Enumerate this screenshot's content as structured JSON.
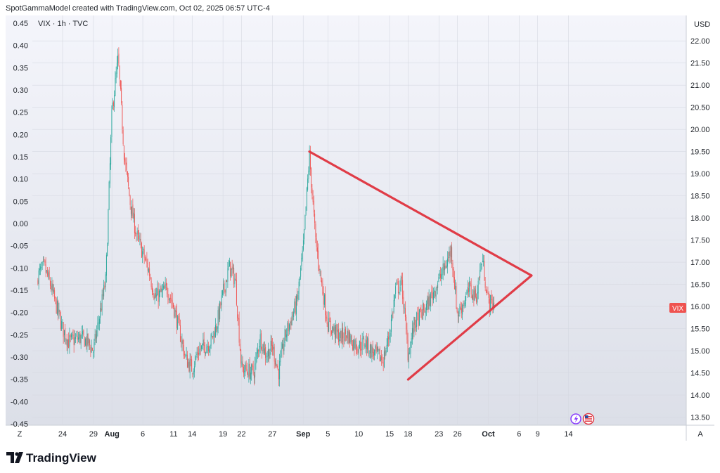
{
  "header": {
    "created_by": "SpotGammaModel created with TradingView.com, Oct 02, 2025 06:57 UTC-4",
    "symbol_line": "VIX · 1h · TVC"
  },
  "footer": {
    "brand": "TradingView"
  },
  "colors": {
    "up": "#26a69a",
    "down": "#ef5350",
    "trendline": "#e03c47",
    "badge": "#ef5350",
    "background_top": "#f4f5fb",
    "background_bottom": "#dcdfe8"
  },
  "icons": [
    "tradingview-logo-icon",
    "lightning-event-icon",
    "us-flag-event-icon"
  ],
  "chart_data": {
    "type": "candlestick",
    "symbol": "VIX",
    "interval": "1h",
    "source": "TVC",
    "currency_label": "USD",
    "last_price_label": "VIX",
    "right_axis": {
      "range": [
        13.35,
        22.4
      ],
      "ticks": [
        "22.00",
        "21.50",
        "21.00",
        "20.50",
        "20.00",
        "19.50",
        "19.00",
        "18.50",
        "18.00",
        "17.50",
        "17.00",
        "16.50",
        "16.00",
        "15.50",
        "15.00",
        "14.50",
        "14.00",
        "13.50"
      ]
    },
    "left_axis": {
      "range": [
        -0.45,
        0.45
      ],
      "ticks": [
        "0.45",
        "0.40",
        "0.35",
        "0.30",
        "0.25",
        "0.20",
        "0.15",
        "0.10",
        "0.05",
        "0.00",
        "-0.05",
        "-0.10",
        "-0.15",
        "-0.20",
        "-0.25",
        "-0.30",
        "-0.35",
        "-0.40",
        "-0.45"
      ]
    },
    "x_axis": {
      "labels": [
        "24",
        "29",
        "Aug",
        "6",
        "11",
        "14",
        "19",
        "22",
        "27",
        "Sep",
        "5",
        "10",
        "15",
        "18",
        "23",
        "26",
        "Oct",
        "6",
        "9",
        "14"
      ],
      "bold_labels": [
        "Aug",
        "Sep",
        "Oct"
      ],
      "left_corner": "Z",
      "right_corner": "A"
    },
    "price_path": [
      {
        "x": "Jul 20",
        "y": 16.7
      },
      {
        "x": "Jul 21",
        "y": 16.9
      },
      {
        "x": "Jul 22",
        "y": 16.5
      },
      {
        "x": "Jul 23",
        "y": 16.0
      },
      {
        "x": "Jul 24",
        "y": 15.5
      },
      {
        "x": "Jul 25",
        "y": 15.2
      },
      {
        "x": "Jul 27",
        "y": 15.3
      },
      {
        "x": "Jul 28",
        "y": 15.2
      },
      {
        "x": "Jul 29",
        "y": 15.0
      },
      {
        "x": "Jul 30",
        "y": 15.8
      },
      {
        "x": "Jul 31",
        "y": 16.6
      },
      {
        "x": "Aug 1",
        "y": 20.4
      },
      {
        "x": "Aug 2",
        "y": 21.6
      },
      {
        "x": "Aug 3",
        "y": 19.4
      },
      {
        "x": "Aug 4",
        "y": 18.3
      },
      {
        "x": "Aug 5",
        "y": 17.6
      },
      {
        "x": "Aug 6",
        "y": 17.2
      },
      {
        "x": "Aug 7",
        "y": 16.8
      },
      {
        "x": "Aug 8",
        "y": 16.2
      },
      {
        "x": "Aug 10",
        "y": 16.4
      },
      {
        "x": "Aug 11",
        "y": 16.0
      },
      {
        "x": "Aug 12",
        "y": 15.4
      },
      {
        "x": "Aug 13",
        "y": 14.8
      },
      {
        "x": "Aug 14",
        "y": 14.6
      },
      {
        "x": "Aug 15",
        "y": 15.0
      },
      {
        "x": "Aug 17",
        "y": 15.2
      },
      {
        "x": "Aug 18",
        "y": 15.6
      },
      {
        "x": "Aug 19",
        "y": 16.3
      },
      {
        "x": "Aug 20",
        "y": 16.9
      },
      {
        "x": "Aug 21",
        "y": 16.6
      },
      {
        "x": "Aug 22",
        "y": 14.6
      },
      {
        "x": "Aug 24",
        "y": 14.5
      },
      {
        "x": "Aug 25",
        "y": 15.3
      },
      {
        "x": "Aug 26",
        "y": 14.9
      },
      {
        "x": "Aug 27",
        "y": 15.1
      },
      {
        "x": "Aug 28",
        "y": 14.5
      },
      {
        "x": "Aug 29",
        "y": 15.3
      },
      {
        "x": "Aug 31",
        "y": 16.1
      },
      {
        "x": "Sep 1",
        "y": 17.3
      },
      {
        "x": "Sep 2",
        "y": 19.4
      },
      {
        "x": "Sep 3",
        "y": 17.5
      },
      {
        "x": "Sep 4",
        "y": 16.5
      },
      {
        "x": "Sep 5",
        "y": 15.6
      },
      {
        "x": "Sep 7",
        "y": 15.3
      },
      {
        "x": "Sep 8",
        "y": 15.4
      },
      {
        "x": "Sep 9",
        "y": 15.2
      },
      {
        "x": "Sep 10",
        "y": 15.1
      },
      {
        "x": "Sep 11",
        "y": 15.2
      },
      {
        "x": "Sep 12",
        "y": 15.0
      },
      {
        "x": "Sep 14",
        "y": 14.8
      },
      {
        "x": "Sep 15",
        "y": 15.4
      },
      {
        "x": "Sep 16",
        "y": 16.4
      },
      {
        "x": "Sep 17",
        "y": 16.5
      },
      {
        "x": "Sep 18",
        "y": 14.9
      },
      {
        "x": "Sep 19",
        "y": 15.6
      },
      {
        "x": "Sep 21",
        "y": 16.0
      },
      {
        "x": "Sep 22",
        "y": 16.3
      },
      {
        "x": "Sep 23",
        "y": 16.6
      },
      {
        "x": "Sep 24",
        "y": 16.9
      },
      {
        "x": "Sep 25",
        "y": 17.3
      },
      {
        "x": "Sep 26",
        "y": 15.8
      },
      {
        "x": "Sep 28",
        "y": 16.4
      },
      {
        "x": "Sep 29",
        "y": 16.2
      },
      {
        "x": "Sep 30",
        "y": 17.1
      },
      {
        "x": "Oct 1",
        "y": 16.1
      },
      {
        "x": "Oct 2",
        "y": 16.05
      }
    ],
    "trendlines": [
      {
        "name": "upper-trendline",
        "from": {
          "x": "Sep 2",
          "y": 19.5
        },
        "to": {
          "x": "Oct 8",
          "y": 16.7
        }
      },
      {
        "name": "lower-trendline",
        "from": {
          "x": "Sep 18",
          "y": 14.35
        },
        "to": {
          "x": "Oct 8",
          "y": 16.7
        }
      }
    ],
    "legend": null,
    "grid": true
  }
}
